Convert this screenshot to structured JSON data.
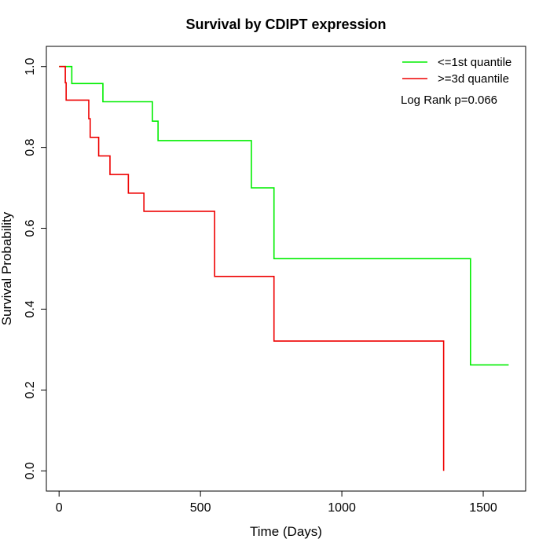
{
  "chart_data": {
    "type": "line",
    "step": true,
    "title": "Survival by CDIPT expression",
    "xlabel": "Time (Days)",
    "ylabel": "Survival Probability",
    "xlim": [
      -45,
      1650
    ],
    "ylim": [
      -0.05,
      1.05
    ],
    "xticks": [
      0,
      500,
      1000,
      1500
    ],
    "yticks": [
      0.0,
      0.2,
      0.4,
      0.6,
      0.8,
      1.0
    ],
    "xtick_labels": [
      "0",
      "500",
      "1000",
      "1500"
    ],
    "ytick_labels": [
      "0.0",
      "0.2",
      "0.4",
      "0.6",
      "0.8",
      "1.0"
    ],
    "grid": false,
    "legend_position": "top-right",
    "annotation": "Log Rank p=0.066",
    "series": [
      {
        "name": "<=1st quantile",
        "color": "#00ee00",
        "points": [
          [
            0,
            1.0
          ],
          [
            45,
            1.0
          ],
          [
            45,
            0.958
          ],
          [
            155,
            0.958
          ],
          [
            155,
            0.913
          ],
          [
            330,
            0.913
          ],
          [
            330,
            0.865
          ],
          [
            350,
            0.865
          ],
          [
            350,
            0.817
          ],
          [
            680,
            0.817
          ],
          [
            680,
            0.7
          ],
          [
            760,
            0.7
          ],
          [
            760,
            0.525
          ],
          [
            1455,
            0.525
          ],
          [
            1455,
            0.262
          ],
          [
            1590,
            0.262
          ]
        ]
      },
      {
        "name": ">=3d quantile",
        "color": "#ee0000",
        "points": [
          [
            0,
            1.0
          ],
          [
            22,
            1.0
          ],
          [
            22,
            0.96
          ],
          [
            25,
            0.96
          ],
          [
            25,
            0.917
          ],
          [
            105,
            0.917
          ],
          [
            105,
            0.871
          ],
          [
            110,
            0.871
          ],
          [
            110,
            0.825
          ],
          [
            140,
            0.825
          ],
          [
            140,
            0.779
          ],
          [
            180,
            0.779
          ],
          [
            180,
            0.733
          ],
          [
            245,
            0.733
          ],
          [
            245,
            0.687
          ],
          [
            300,
            0.687
          ],
          [
            300,
            0.642
          ],
          [
            550,
            0.642
          ],
          [
            550,
            0.481
          ],
          [
            760,
            0.481
          ],
          [
            760,
            0.321
          ],
          [
            1360,
            0.321
          ],
          [
            1360,
            0.0
          ]
        ]
      }
    ]
  }
}
